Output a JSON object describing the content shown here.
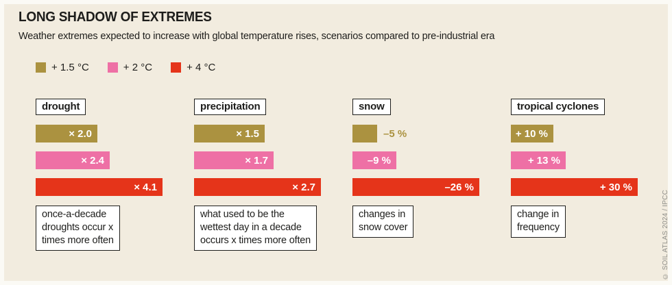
{
  "colors": {
    "canvas": "#fbfaf5",
    "panel_background": "#f2ecdf",
    "text": "#1d1d1b",
    "box_background": "#ffffff",
    "credit_text": "#8e8e89"
  },
  "footer": {
    "credit": "© SOIL ATLAS 2024 / IPCC"
  },
  "chart_data": {
    "type": "bar",
    "orientation": "horizontal",
    "title": "LONG SHADOW OF EXTREMES",
    "subtitle": "Weather extremes expected to increase with global temperature rises, scenarios compared to pre-industrial era",
    "legend_position": "top-left",
    "grid": false,
    "normalization": "bars scaled per group; longest (+4 °C) bar in each group drawn at full width",
    "series": [
      {
        "name": "+ 1.5 °C",
        "color": "#ab9240"
      },
      {
        "name": "+ 2 °C",
        "color": "#ee70a5"
      },
      {
        "name": "+ 4 °C",
        "color": "#e5341a"
      }
    ],
    "groups": [
      {
        "category": "drought",
        "unit": "x times",
        "values": [
          2.0,
          2.4,
          4.1
        ],
        "labels": [
          "× 2.0",
          "× 2.4",
          "× 4.1"
        ],
        "caption_lines": [
          "once-a-decade",
          "droughts occur x",
          "times more often"
        ]
      },
      {
        "category": "precipitation",
        "unit": "x times",
        "values": [
          1.5,
          1.7,
          2.7
        ],
        "labels": [
          "× 1.5",
          "× 1.7",
          "× 2.7"
        ],
        "caption_lines": [
          "what used to be the",
          "wettest day in a decade",
          "occurs x times more often"
        ]
      },
      {
        "category": "snow",
        "unit": "%",
        "values": [
          -5,
          -9,
          -26
        ],
        "labels": [
          "–5 %",
          "–9 %",
          "–26 %"
        ],
        "caption_lines": [
          "changes in",
          "snow cover"
        ]
      },
      {
        "category": "tropical cyclones",
        "unit": "%",
        "values": [
          10,
          13,
          30
        ],
        "labels": [
          "+ 10 %",
          "+ 13 %",
          "+ 30 %"
        ],
        "caption_lines": [
          "change in",
          "frequency"
        ]
      }
    ]
  }
}
